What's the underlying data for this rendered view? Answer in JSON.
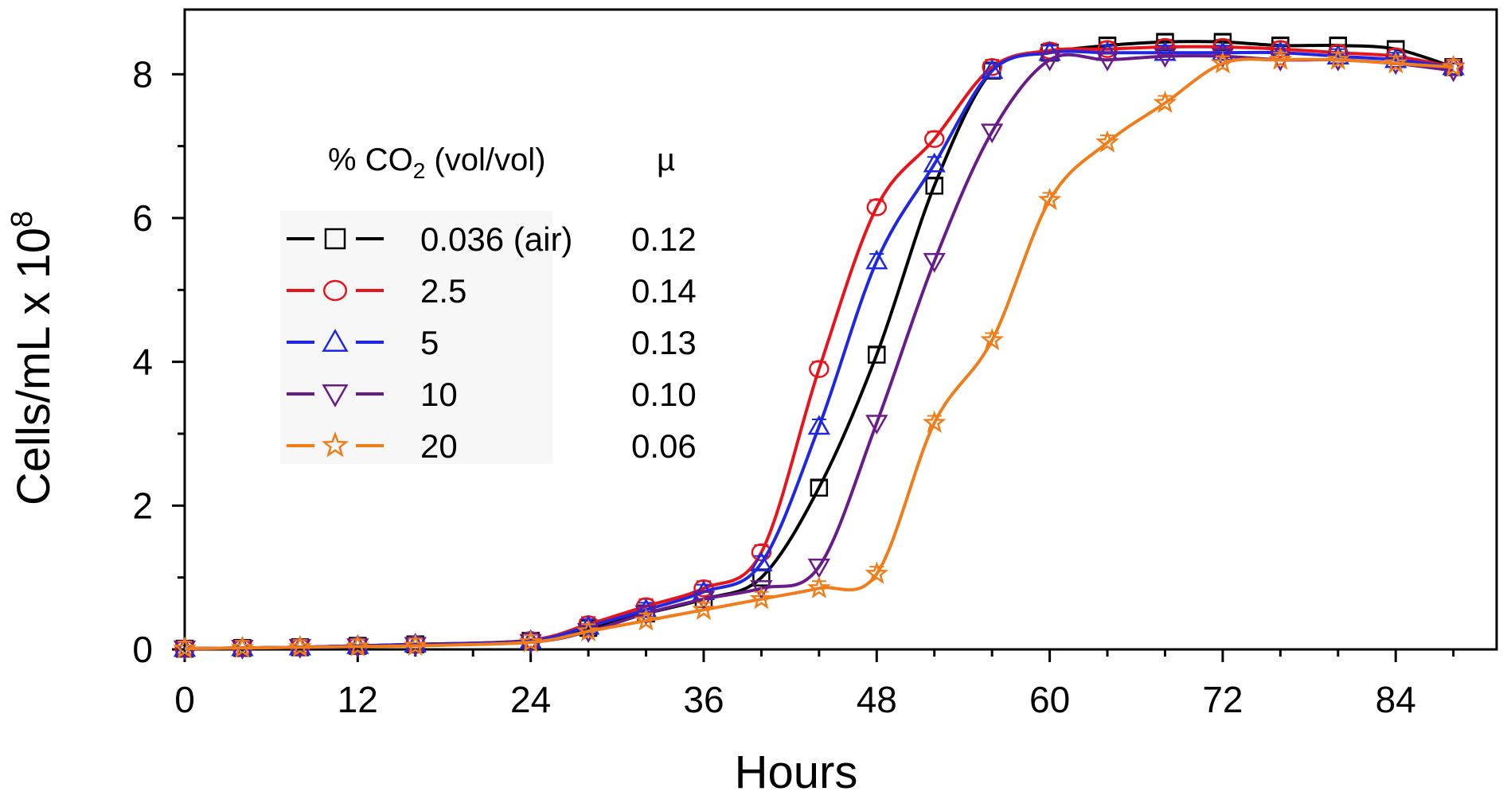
{
  "chart_data": {
    "type": "line",
    "title": "",
    "xlabel": "Hours",
    "ylabel": "Cells/mL x 10",
    "ylabel_exponent": "8",
    "xlim": [
      0,
      91
    ],
    "ylim": [
      0,
      8.9
    ],
    "x_ticks": [
      0,
      12,
      24,
      36,
      48,
      60,
      72,
      84
    ],
    "x_tick_labels": [
      "0",
      "12",
      "24",
      "36",
      "48",
      "60",
      "72",
      "84"
    ],
    "y_ticks": [
      0,
      2,
      4,
      6,
      8
    ],
    "y_tick_labels": [
      "0",
      "2",
      "4",
      "6",
      "8"
    ],
    "grid": false,
    "legend": {
      "placement": "upper-left",
      "header_left": "% CO",
      "header_sub": "2",
      "header_right": " (vol/vol)",
      "header_mu": "µ"
    },
    "series": [
      {
        "name": "0.036 (air)",
        "mu": "0.12",
        "color": "#000000",
        "marker": "square",
        "x": [
          0,
          4,
          8,
          12,
          16,
          24,
          28,
          32,
          36,
          40,
          44,
          48,
          52,
          56,
          60,
          64,
          68,
          72,
          76,
          80,
          84,
          88
        ],
        "y": [
          0.01,
          0.02,
          0.03,
          0.05,
          0.07,
          0.12,
          0.3,
          0.5,
          0.7,
          1.0,
          2.25,
          4.1,
          6.45,
          8.05,
          8.3,
          8.4,
          8.45,
          8.45,
          8.4,
          8.4,
          8.35,
          8.1
        ]
      },
      {
        "name": "2.5",
        "mu": "0.14",
        "color": "#e8141b",
        "marker": "circle",
        "x": [
          0,
          4,
          8,
          12,
          16,
          24,
          28,
          32,
          36,
          40,
          44,
          48,
          52,
          56,
          60,
          64,
          68,
          72,
          76,
          80,
          84,
          88
        ],
        "y": [
          0.01,
          0.02,
          0.03,
          0.05,
          0.07,
          0.13,
          0.35,
          0.6,
          0.85,
          1.35,
          3.9,
          6.15,
          7.1,
          8.1,
          8.33,
          8.35,
          8.38,
          8.38,
          8.35,
          8.3,
          8.25,
          8.1
        ]
      },
      {
        "name": "5",
        "mu": "0.13",
        "color": "#1f28e0",
        "marker": "triangle-up",
        "x": [
          0,
          4,
          8,
          12,
          16,
          24,
          28,
          32,
          36,
          40,
          44,
          48,
          52,
          56,
          60,
          64,
          68,
          72,
          76,
          80,
          84,
          88
        ],
        "y": [
          0.01,
          0.02,
          0.03,
          0.05,
          0.07,
          0.12,
          0.32,
          0.55,
          0.8,
          1.2,
          3.1,
          5.4,
          6.75,
          8.05,
          8.3,
          8.3,
          8.3,
          8.3,
          8.3,
          8.25,
          8.2,
          8.1
        ]
      },
      {
        "name": "10",
        "mu": "0.10",
        "color": "#6a1b8a",
        "marker": "triangle-down",
        "x": [
          0,
          4,
          8,
          12,
          16,
          24,
          28,
          32,
          36,
          40,
          44,
          48,
          52,
          56,
          60,
          64,
          68,
          72,
          76,
          80,
          84,
          88
        ],
        "y": [
          0.01,
          0.02,
          0.03,
          0.04,
          0.06,
          0.1,
          0.25,
          0.5,
          0.7,
          0.85,
          1.15,
          3.15,
          5.4,
          7.2,
          8.2,
          8.2,
          8.25,
          8.25,
          8.2,
          8.2,
          8.15,
          8.05
        ]
      },
      {
        "name": "20",
        "mu": "0.06",
        "color": "#f07d1a",
        "marker": "star",
        "x": [
          0,
          4,
          8,
          12,
          16,
          24,
          28,
          32,
          36,
          40,
          44,
          48,
          52,
          56,
          60,
          64,
          68,
          72,
          76,
          80,
          84,
          88
        ],
        "y": [
          0.01,
          0.02,
          0.03,
          0.04,
          0.05,
          0.1,
          0.25,
          0.4,
          0.55,
          0.7,
          0.85,
          1.05,
          3.15,
          4.3,
          6.25,
          7.05,
          7.6,
          8.15,
          8.2,
          8.2,
          8.15,
          8.1
        ]
      }
    ]
  }
}
